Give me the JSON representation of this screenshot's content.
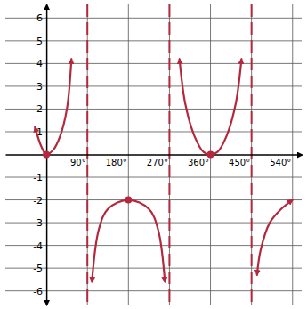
{
  "chart_data": {
    "type": "line",
    "x": [
      -25,
      -10,
      0,
      15,
      30,
      45,
      55,
      90,
      100,
      115,
      135,
      180,
      225,
      245,
      260,
      270,
      292,
      305,
      325,
      345,
      360,
      375,
      395,
      415,
      428,
      450,
      462,
      470,
      490,
      515,
      540
    ],
    "values": [
      1.2,
      0.3,
      0,
      0.2,
      0.8,
      2.0,
      4.2,
      null,
      -5.6,
      -3.3,
      -2.4,
      -2,
      -2.4,
      -3.3,
      -5.6,
      null,
      4.2,
      2.2,
      0.8,
      0.1,
      0,
      0.1,
      0.8,
      2.2,
      4.2,
      null,
      -5.3,
      -4.2,
      -3.0,
      -2.4,
      -2.0
    ],
    "points": {
      "x": [
        0,
        180,
        360
      ],
      "values": [
        0,
        -2,
        0
      ]
    },
    "asymptotes": [
      90,
      270,
      450
    ],
    "color": "#b3283c",
    "marker": "circle",
    "line_style": "solid",
    "grid": true,
    "xlim": [
      -90,
      560
    ],
    "ylim": [
      -6.6,
      6.6
    ],
    "xticks": [
      {
        "value": 90,
        "label": "90°"
      },
      {
        "value": 180,
        "label": "180°"
      },
      {
        "value": 270,
        "label": "270°"
      },
      {
        "value": 360,
        "label": "360°"
      },
      {
        "value": 450,
        "label": "450°"
      },
      {
        "value": 540,
        "label": "540°"
      }
    ],
    "yticks": [
      -6,
      -5,
      -4,
      -3,
      -2,
      -1,
      1,
      2,
      3,
      4,
      5,
      6
    ]
  }
}
